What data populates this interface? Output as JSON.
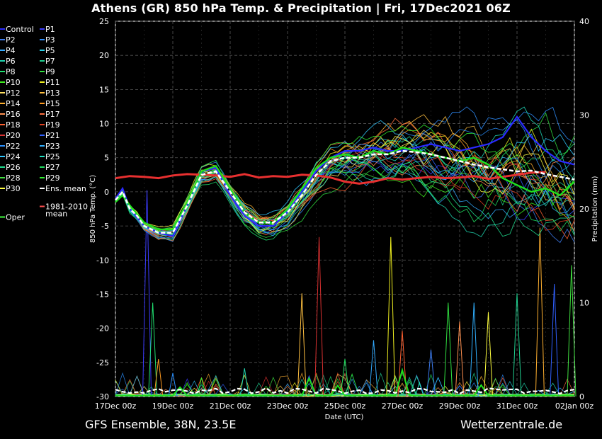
{
  "header": {
    "title": "Athens  (GR)  850 hPa Temp. & Precipitation | Fri, 17Dec2021 06Z"
  },
  "footer": {
    "left": "GFS Ensemble, 38N, 23.5E",
    "right": "Wetterzentrale.de"
  },
  "colors": {
    "background": "#000000",
    "grid": "#555555",
    "text": "#ffffff",
    "control": "#2a2aff",
    "oper": "#1ee11e",
    "mean": "#ffffff",
    "climate": "#e83030"
  },
  "chart_data": {
    "type": "line",
    "title": "Athens  (GR)  850 hPa Temp. & Precipitation | Fri, 17Dec2021 06Z",
    "xlabel": "Date (UTC)",
    "ylabel": "850 hPa Temp. (°C)",
    "y2label": "Precipitation (mm)",
    "ylim": [
      -30,
      25
    ],
    "y2lim": [
      0,
      40
    ],
    "yticks": [
      "25",
      "20",
      "15",
      "10",
      "5",
      "0",
      "-5",
      "-10",
      "-15",
      "-20",
      "-25",
      "-30"
    ],
    "y2ticks": [
      "40",
      "30",
      "20",
      "10",
      "0"
    ],
    "x_start": "2021-12-17T00:00Z",
    "x_end": "2022-01-02T00:00Z",
    "xticks": [
      "17Dec 00z",
      "19Dec 00z",
      "21Dec 00z",
      "23Dec 00z",
      "25Dec 00z",
      "27Dec 00z",
      "29Dec 00z",
      "31Dec 00z",
      "02Jan 00z"
    ],
    "grid": true,
    "legend_position": "left",
    "legend": [
      {
        "name": "Control",
        "color": "#2a2aff"
      },
      {
        "name": "P1",
        "color": "#3c3cff"
      },
      {
        "name": "P2",
        "color": "#3c7cf0"
      },
      {
        "name": "P3",
        "color": "#2f8fff"
      },
      {
        "name": "P4",
        "color": "#33aaff"
      },
      {
        "name": "P5",
        "color": "#2ad0e8"
      },
      {
        "name": "P6",
        "color": "#20d6b0"
      },
      {
        "name": "P7",
        "color": "#20d090"
      },
      {
        "name": "P8",
        "color": "#20e070"
      },
      {
        "name": "P9",
        "color": "#30e040"
      },
      {
        "name": "P10",
        "color": "#40f020"
      },
      {
        "name": "P11",
        "color": "#f0f020"
      },
      {
        "name": "P12",
        "color": "#ffe060"
      },
      {
        "name": "P13",
        "color": "#ffc040"
      },
      {
        "name": "P14",
        "color": "#ffb030"
      },
      {
        "name": "P15",
        "color": "#ff9a20"
      },
      {
        "name": "P16",
        "color": "#ff9050"
      },
      {
        "name": "P17",
        "color": "#ff7040"
      },
      {
        "name": "P18",
        "color": "#ff6030"
      },
      {
        "name": "P19",
        "color": "#e04020"
      },
      {
        "name": "P20",
        "color": "#d83030"
      },
      {
        "name": "P21",
        "color": "#3060ff"
      },
      {
        "name": "P22",
        "color": "#2a90ff"
      },
      {
        "name": "P23",
        "color": "#30b0ff"
      },
      {
        "name": "P24",
        "color": "#30c8ff"
      },
      {
        "name": "P25",
        "color": "#20e0c0"
      },
      {
        "name": "P26",
        "color": "#20e090"
      },
      {
        "name": "P27",
        "color": "#20e060"
      },
      {
        "name": "P28",
        "color": "#40e040"
      },
      {
        "name": "P29",
        "color": "#30f030"
      },
      {
        "name": "P30",
        "color": "#ffff40"
      },
      {
        "name": "Ens. mean",
        "color": "#ffffff"
      },
      {
        "name": "Oper",
        "color": "#40ff40"
      },
      {
        "name": "1981-2010\nmean",
        "color": "#ff5050"
      }
    ],
    "series": [
      {
        "name": "Ens. mean",
        "x": [
          0,
          0.25,
          0.5,
          0.75,
          1,
          1.5,
          2,
          2.5,
          3,
          3.5,
          4,
          4.5,
          5,
          5.5,
          6,
          6.5,
          7,
          7.5,
          8,
          8.5,
          9,
          9.5,
          10,
          10.5,
          11,
          11.5,
          12,
          12.5,
          13,
          13.5,
          14,
          14.5,
          15,
          15.5,
          16
        ],
        "y": [
          -1.2,
          0,
          -2.5,
          -3.5,
          -5,
          -6,
          -6,
          -2,
          2.5,
          3,
          0,
          -3,
          -4.5,
          -4.5,
          -3,
          -0.5,
          2.5,
          4.5,
          5,
          5,
          5.5,
          5.5,
          6,
          5.8,
          5.5,
          5,
          4.5,
          4,
          3.6,
          3.3,
          3,
          3.1,
          2.6,
          2.2,
          1.8
        ]
      },
      {
        "name": "Control",
        "x": [
          0,
          0.25,
          0.5,
          1,
          1.5,
          2,
          2.5,
          3,
          3.5,
          4,
          4.5,
          5,
          5.5,
          6,
          6.5,
          7,
          7.5,
          8,
          8.5,
          9,
          9.5,
          10,
          10.5,
          11,
          11.5,
          12,
          12.5,
          13,
          13.5,
          14,
          14.5,
          15,
          15.5,
          16
        ],
        "y": [
          -1,
          0.5,
          -2.5,
          -5,
          -6,
          -6.5,
          -2,
          3,
          3.5,
          -0.5,
          -3.5,
          -5,
          -5,
          -3,
          0,
          3,
          5,
          6,
          6,
          6.5,
          6,
          6,
          6.5,
          7,
          6.5,
          6,
          6.5,
          7,
          8,
          11,
          8,
          6,
          4.5,
          4
        ]
      },
      {
        "name": "Oper",
        "x": [
          0,
          0.25,
          0.5,
          1,
          1.5,
          2,
          2.5,
          3,
          3.5,
          4,
          4.5,
          5,
          5.5,
          6,
          6.5,
          7,
          7.5,
          8,
          8.5,
          9,
          9.5,
          10,
          10.5,
          11,
          11.5,
          12,
          12.5,
          13,
          13.5,
          14,
          14.5,
          15,
          15.5,
          16
        ],
        "y": [
          -1.5,
          -0.5,
          -2,
          -4.5,
          -5.5,
          -5.5,
          -1.5,
          3,
          3.8,
          0.5,
          -3,
          -4.5,
          -4.5,
          -2.5,
          0.5,
          3.5,
          5,
          5.5,
          5,
          6,
          5.5,
          6.5,
          6,
          5.5,
          5,
          4.5,
          5,
          4,
          2,
          1,
          0,
          0.5,
          -0.5,
          1.5
        ]
      },
      {
        "name": "1981-2010\nmean",
        "x": [
          0,
          0.5,
          1,
          1.5,
          2,
          2.5,
          3,
          3.5,
          4,
          4.5,
          5,
          5.5,
          6,
          6.5,
          7,
          7.5,
          8,
          8.5,
          9,
          9.5,
          10,
          10.5,
          11,
          11.5,
          12,
          12.5,
          13,
          13.5,
          14,
          14.5,
          15
        ],
        "y": [
          2,
          2.3,
          2.2,
          2,
          2.4,
          2.6,
          2.5,
          2.4,
          2.2,
          2.6,
          2.1,
          2.3,
          2.2,
          2.5,
          2.4,
          2.1,
          1.5,
          1.2,
          1.5,
          2,
          1.8,
          2,
          2.2,
          2,
          2.1,
          2.3,
          1.9,
          2.2,
          2.5,
          2.8,
          2.9
        ]
      }
    ],
    "precip_spikes_mm": [
      {
        "x": 1.1,
        "y": 22
      },
      {
        "x": 1.3,
        "y": 10
      },
      {
        "x": 1.5,
        "y": 4
      },
      {
        "x": 2,
        "y": 2.5
      },
      {
        "x": 3,
        "y": 2
      },
      {
        "x": 4.5,
        "y": 3
      },
      {
        "x": 6.5,
        "y": 11
      },
      {
        "x": 7.1,
        "y": 17
      },
      {
        "x": 8,
        "y": 4
      },
      {
        "x": 9,
        "y": 6
      },
      {
        "x": 9.6,
        "y": 17
      },
      {
        "x": 10,
        "y": 7
      },
      {
        "x": 10.6,
        "y": 1.5
      },
      {
        "x": 11,
        "y": 5
      },
      {
        "x": 11.6,
        "y": 10
      },
      {
        "x": 12,
        "y": 8
      },
      {
        "x": 12.5,
        "y": 10
      },
      {
        "x": 13,
        "y": 9
      },
      {
        "x": 14,
        "y": 11
      },
      {
        "x": 14.8,
        "y": 18
      },
      {
        "x": 15.3,
        "y": 12
      },
      {
        "x": 15.9,
        "y": 14
      }
    ]
  }
}
